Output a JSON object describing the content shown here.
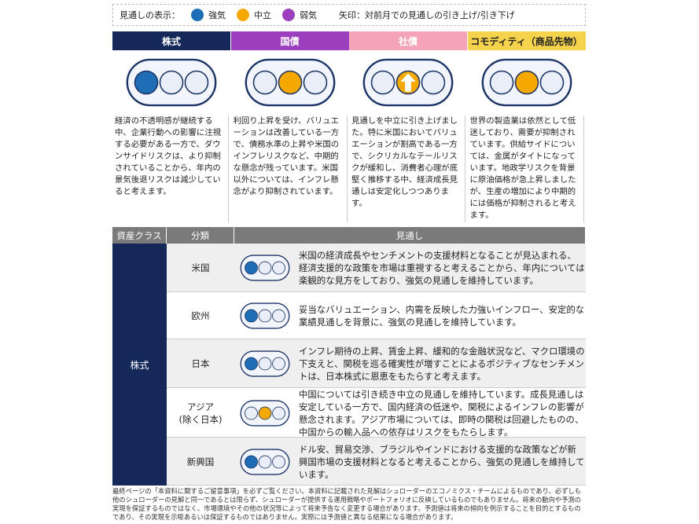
{
  "legend": {
    "label": "見通しの表示：",
    "items": [
      {
        "text": "強気",
        "color": "#1f6db5"
      },
      {
        "text": "中立",
        "color": "#f5a800"
      },
      {
        "text": "弱気",
        "color": "#9b3fbf"
      }
    ],
    "arrow_note": "矢印：対前月での見通しの引き上げ/引き下げ"
  },
  "columns": [
    {
      "title": "株式",
      "header_color": "#14285a",
      "title_color": "#ffffff",
      "signal": {
        "position": 0,
        "color": "#1f6db5"
      },
      "text": "経済の不透明感が継続する中、企業行動への影響に注視する必要がある一方で、ダウンサイドリスクは、より抑制されていることから、年内の景気後退リスクは減少していると考えます。"
    },
    {
      "title": "国債",
      "header_color": "#9b3fbf",
      "title_color": "#ffffff",
      "signal": {
        "position": 1,
        "color": "#f5a800"
      },
      "text": "利回り上昇を受け、バリュエーションは改善している一方で、債務水準の上昇や米国のインフレリスクなど、中期的な懸念が残っています。米国以外については、インフレ懸念がより抑制されています。"
    },
    {
      "title": "社債",
      "header_color": "#f4a3b8",
      "title_color": "#ffffff",
      "signal": {
        "position": 1,
        "color": "#f5a800",
        "arrow": "up"
      },
      "text": "見通しを中立に引き上げました。特に米国においてバリュエーションが割高である一方で、シクリカルなテールリスクが緩和し、消費者心理が底堅く推移する中、経済成長見通しは安定化しつつあります。"
    },
    {
      "title": "コモディティ（商品先物）",
      "header_color": "#f6d34c",
      "title_color": "#222222",
      "signal": {
        "position": 1,
        "color": "#f5a800"
      },
      "text": "世界の製造業は依然として低迷しており、需要が抑制されています。供給サイドについては、金属がタイトになっています。地政学リスクを背景に原油価格が急上昇しましたが、生産の増加により中期的には価格が抑制されると考えます。"
    }
  ],
  "table": {
    "headers": [
      "資産クラス",
      "分類",
      "見通し"
    ],
    "asset_class": "株式",
    "rows": [
      {
        "region": "米国",
        "signal": {
          "position": 0,
          "color": "#1f6db5"
        },
        "text": "米国の経済成長やセンチメントの支援材料となることが見込まれる、経済支援的な政策を市場は重視すると考えることから、年内については楽観的な見方をしており、強気の見通しを維持しています。"
      },
      {
        "region": "欧州",
        "signal": {
          "position": 0,
          "color": "#1f6db5"
        },
        "text": "妥当なバリュエーション、内需を反映した力強いインフロー、安定的な業績見通しを背景に、強気の見通しを維持しています。"
      },
      {
        "region": "日本",
        "signal": {
          "position": 0,
          "color": "#1f6db5"
        },
        "text": "インフレ期待の上昇、賃金上昇、緩和的な金融状況など、マクロ環境の下支えと、関税を巡る確実性が増すことによるポジティブなセンチメントは、日本株式に恩恵をもたらすと考えます。"
      },
      {
        "region": "アジア\n(除く日本)",
        "signal": {
          "position": 1,
          "color": "#f5a800"
        },
        "text": "中国については引き続き中立の見通しを維持しています。成長見通しは安定している一方で、国内経済の低迷や、関税によるインフレの影響が懸念されます。アジア市場については、即時の関税は回避したものの、中国からの輸入品への依存はリスクをもたらします。"
      },
      {
        "region": "新興国",
        "signal": {
          "position": 0,
          "color": "#1f6db5"
        },
        "text": "ドル安、貿易交渉、ブラジルやインドにおける支援的な政策などが新興国市場の支援材料となると考えることから、強気の見通しを維持しています。"
      }
    ]
  },
  "footer": "最終ページの「本資料に関するご留意事項」を必ずご覧ください。本資料に記載された見解はシュローダーのエコノミクス・チームによるものであり、必ずしも他のシュローダーの見解と同一であるとは限らず、シュローダーが提供する運用戦略やポートフォリオに反映しているものでもありません。将来の動向や予測の実現を保証するものではなく、市場環境やその他の状況等によって将来予告なく変更する場合があります。予測値は将来の傾向を例示することを目的とするものであり、その実現を示唆あるいは保証するものではありません。実際には予測値と異なる結果になる場合があります。"
}
